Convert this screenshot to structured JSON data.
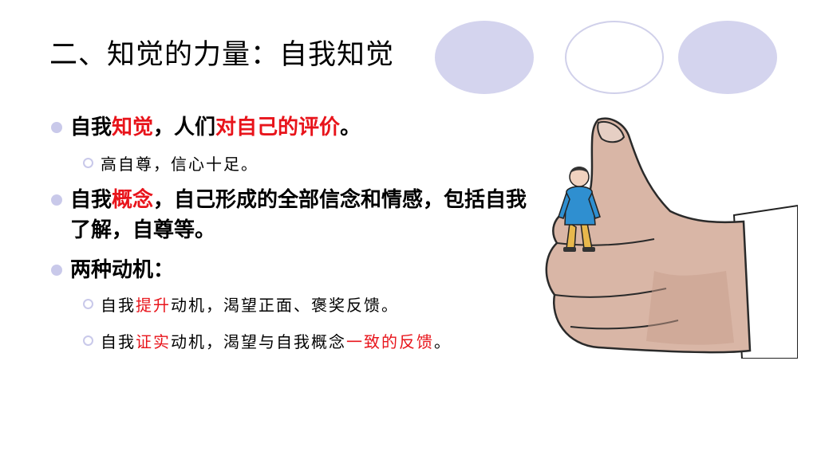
{
  "title": "二、知觉的力量：自我知觉",
  "bullets": {
    "self_perception": {
      "prefix": "自我",
      "highlight": "知觉",
      "middle": "，人们",
      "highlight2": "对自己的评价",
      "suffix": "。",
      "sub": "高自尊，信心十足。"
    },
    "self_concept": {
      "prefix": "自我",
      "highlight": "概念",
      "suffix": "，自己形成的全部信念和情感，包括自我了解，自尊等。"
    },
    "motives": {
      "label": "两种动机：",
      "sub1": {
        "prefix": "自我",
        "highlight": "提升",
        "suffix": "动机，渴望正面、褒奖反馈。"
      },
      "sub2": {
        "prefix": "自我",
        "highlight": "证实",
        "middle": "动机，渴望与自我概念",
        "highlight2": "一致的反馈",
        "suffix": "。"
      }
    }
  },
  "colors": {
    "highlight": "#e8141b",
    "oval_fill": "#d4d4ee",
    "bullet": "#c9c9ea"
  },
  "illustration": "thumbs-up-with-sitting-man"
}
